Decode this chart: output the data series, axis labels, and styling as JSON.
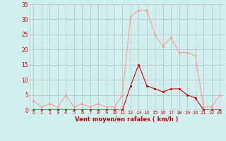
{
  "hours": [
    0,
    1,
    2,
    3,
    4,
    5,
    6,
    7,
    8,
    9,
    10,
    11,
    12,
    13,
    14,
    15,
    16,
    17,
    18,
    19,
    20,
    21,
    22,
    23
  ],
  "wind_mean": [
    0,
    0,
    0,
    0,
    0,
    0,
    0,
    0,
    0,
    0,
    0,
    0,
    8,
    15,
    8,
    7,
    6,
    7,
    7,
    5,
    4,
    0,
    0,
    0
  ],
  "wind_gusts": [
    3,
    1,
    2,
    1,
    5,
    1,
    2,
    1,
    2,
    1,
    1,
    5,
    31,
    33,
    33,
    25,
    21,
    24,
    19,
    19,
    18,
    1,
    1,
    5
  ],
  "bg_color": "#cff0ee",
  "grid_color": "#b0b0b0",
  "line_mean_color": "#cc0000",
  "line_gusts_color": "#ff9999",
  "xlabel": "Vent moyen/en rafales ( km/h )",
  "xlabel_color": "#cc0000",
  "tick_color": "#cc0000",
  "axis_color": "#cc0000",
  "ylim": [
    0,
    35
  ],
  "yticks": [
    0,
    5,
    10,
    15,
    20,
    25,
    30,
    35
  ],
  "ytick_labels": [
    "0",
    "5",
    "10",
    "15",
    "20",
    "25",
    "30",
    "35"
  ]
}
